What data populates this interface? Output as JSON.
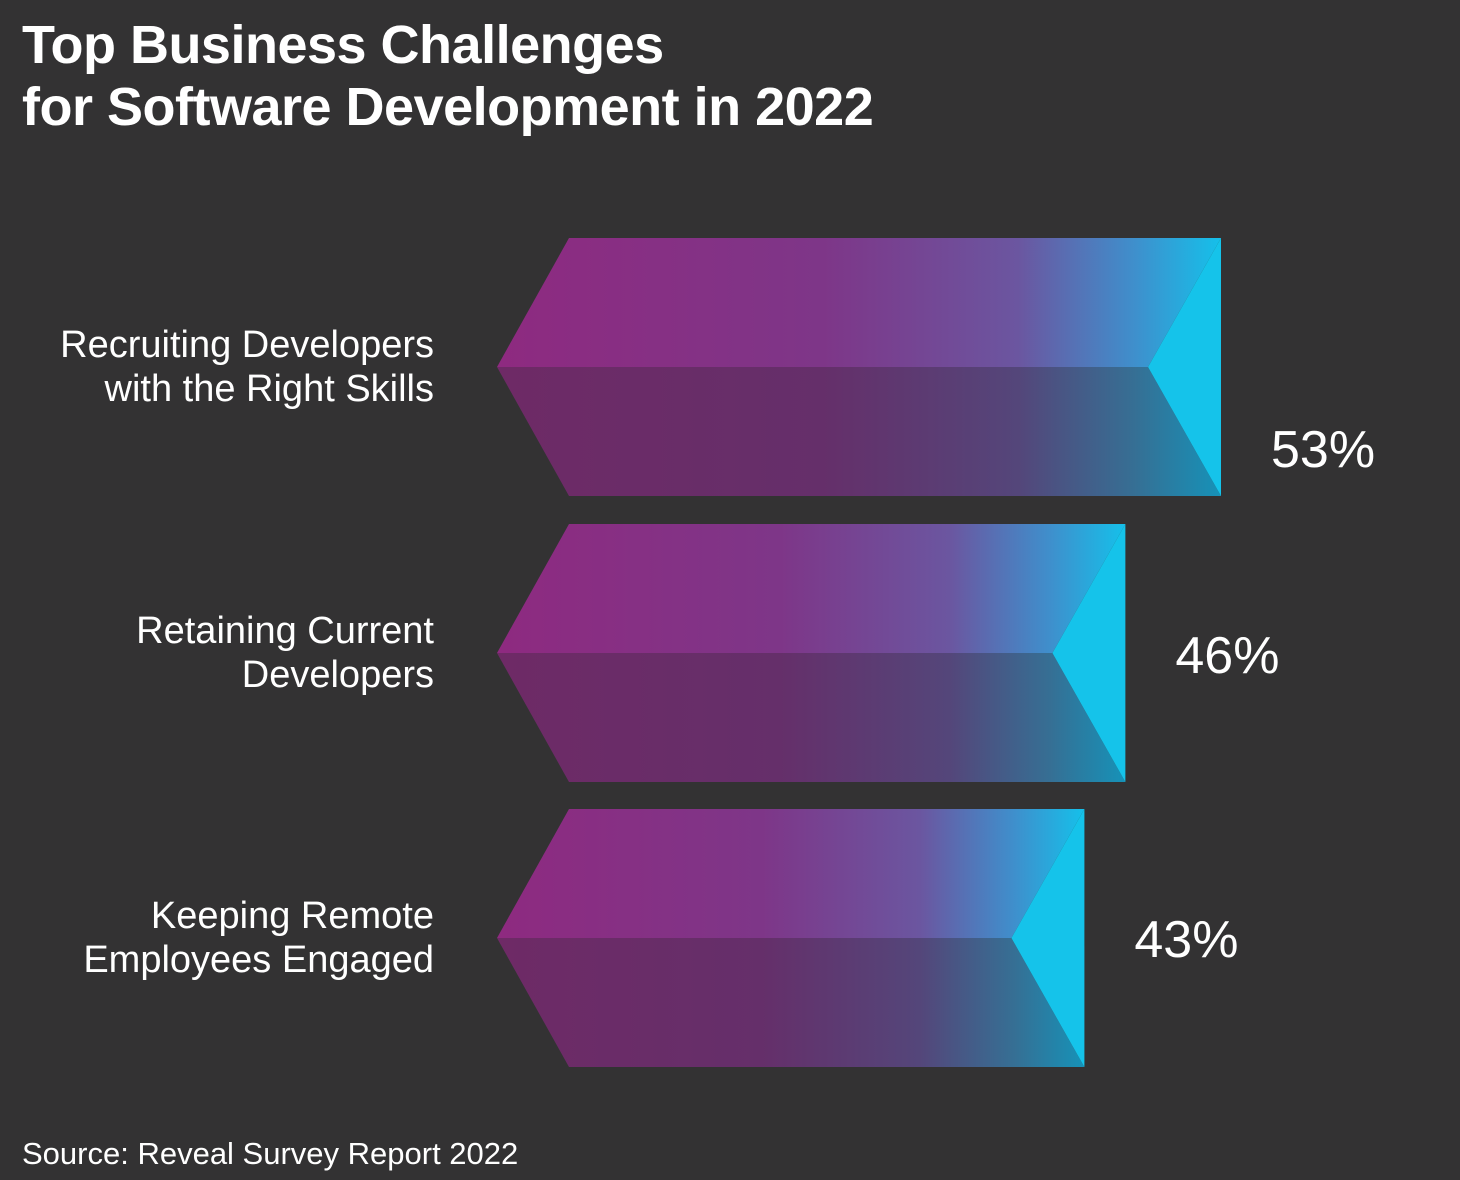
{
  "chart_data": {
    "type": "bar",
    "orientation": "horizontal",
    "title": [
      "Top Business Challenges",
      "for Software Development in 2022"
    ],
    "categories": [
      [
        "Recruiting Developers",
        "with the Right Skills"
      ],
      [
        "Retaining Current",
        "Developers"
      ],
      [
        "Keeping Remote",
        "Employees Engaged"
      ]
    ],
    "values": [
      53,
      46,
      43
    ],
    "value_labels": [
      "53%",
      "46%",
      "43%"
    ],
    "unit": "%",
    "colors": {
      "gradient_start": "#8b2a7e",
      "gradient_mid": "#7a3c8c",
      "gradient_end": "#14c4ea",
      "background": "#333233"
    },
    "source": "Source: Reveal Survey Report 2022"
  }
}
